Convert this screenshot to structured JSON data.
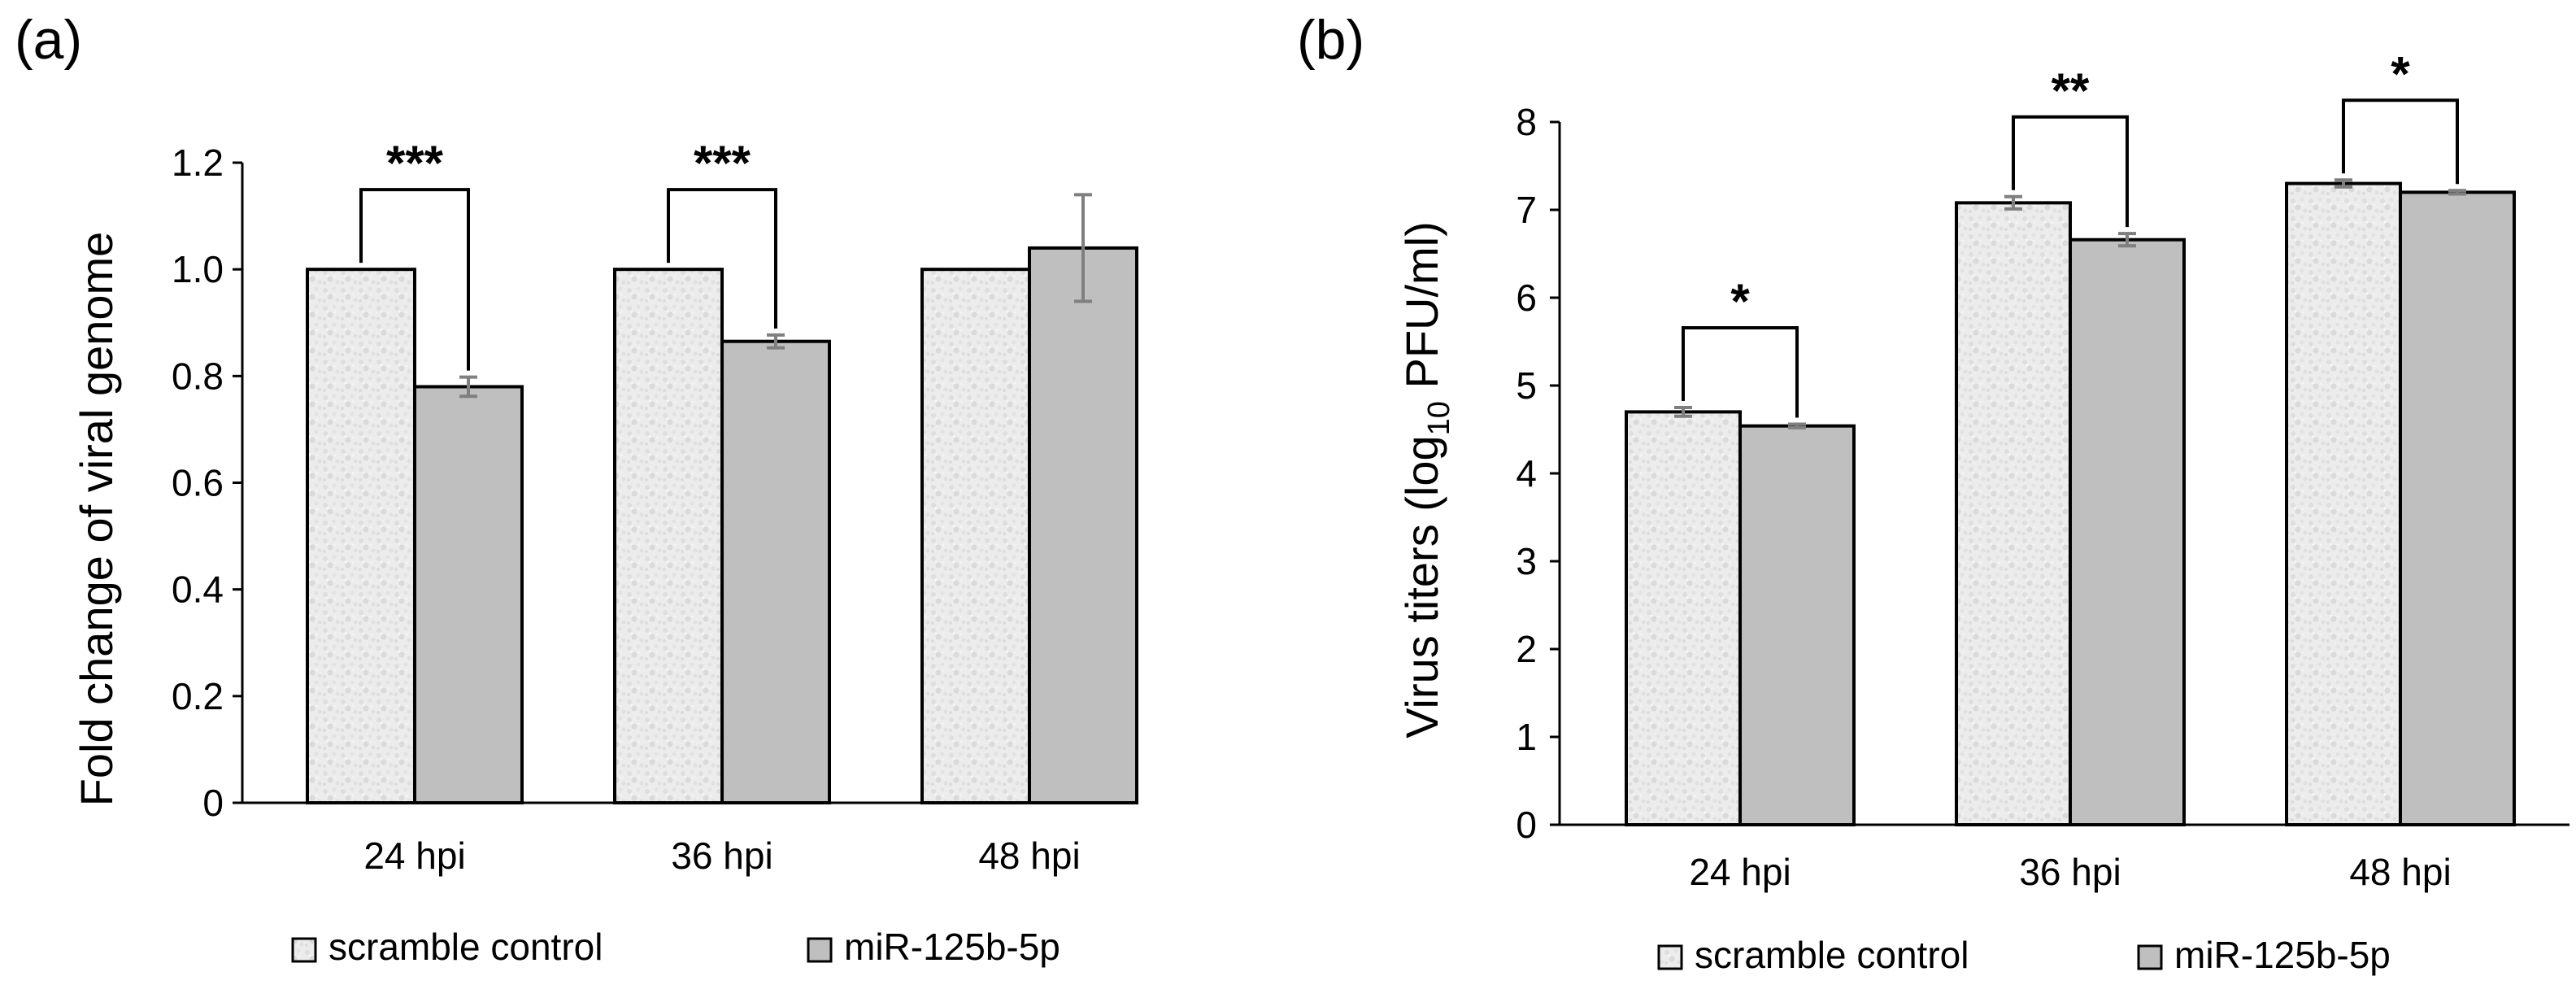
{
  "colors": {
    "control_fill": "#ececec",
    "control_speckle": "#dcdcdc",
    "mir_fill": "#bfbfbf",
    "bar_stroke": "#000000",
    "axis": "#000000",
    "error_bar": "#7f7f7f"
  },
  "chart_data": [
    {
      "panel_label": "(a)",
      "type": "bar",
      "title": "",
      "xlabel": "",
      "ylabel": "Fold change of viral genome",
      "ylim": [
        0,
        1.2
      ],
      "yticks": [
        "0",
        "0.2",
        "0.4",
        "0.6",
        "0.8",
        "1.0",
        "1.2"
      ],
      "categories": [
        "24 hpi",
        "36 hpi",
        "48 hpi"
      ],
      "series": [
        {
          "name": "scramble control",
          "values": [
            1.0,
            1.0,
            1.0
          ],
          "errors": [
            0.0,
            0.0,
            0.0
          ]
        },
        {
          "name": "miR-125b-5p",
          "values": [
            0.78,
            0.865,
            1.04
          ],
          "errors": [
            0.018,
            0.012,
            0.1
          ]
        }
      ],
      "significance": [
        "***",
        "***",
        ""
      ],
      "legend_position": "bottom"
    },
    {
      "panel_label": "(b)",
      "type": "bar",
      "title": "",
      "xlabel": "",
      "ylabel_parts": {
        "pre": "Virus titers (log",
        "sub": "10",
        "post": " PFU/ml)"
      },
      "ylim": [
        0,
        8
      ],
      "yticks": [
        "0",
        "1",
        "2",
        "3",
        "4",
        "5",
        "6",
        "7",
        "8"
      ],
      "categories": [
        "24 hpi",
        "36 hpi",
        "48 hpi"
      ],
      "series": [
        {
          "name": "scramble control",
          "values": [
            4.7,
            7.08,
            7.3
          ],
          "errors": [
            0.05,
            0.07,
            0.04
          ]
        },
        {
          "name": "miR-125b-5p",
          "values": [
            4.54,
            6.66,
            7.2
          ],
          "errors": [
            0.02,
            0.07,
            0.02
          ]
        }
      ],
      "significance": [
        "*",
        "**",
        "*"
      ],
      "legend_position": "bottom"
    }
  ]
}
